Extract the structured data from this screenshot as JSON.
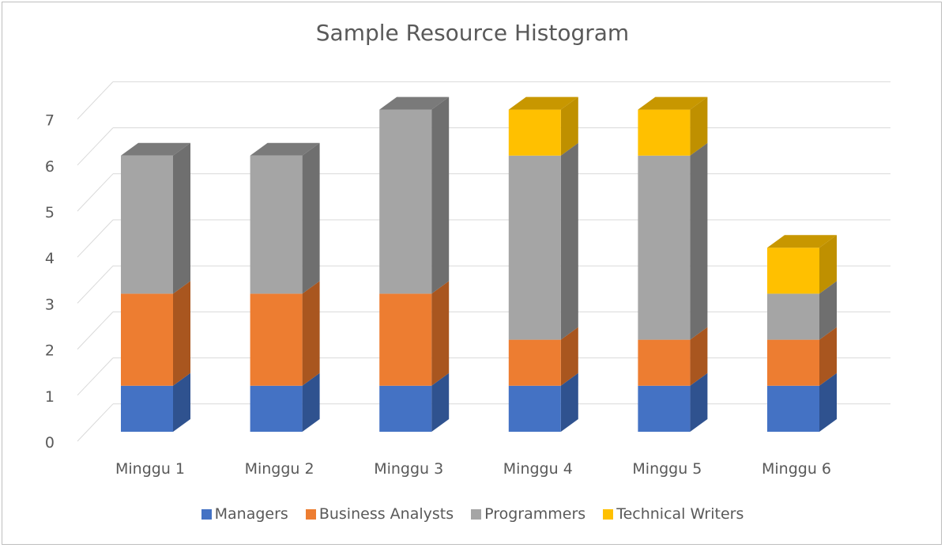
{
  "chart_data": {
    "type": "bar",
    "stacked": true,
    "style": "3d",
    "title": "Sample Resource Histogram",
    "xlabel": "",
    "ylabel": "",
    "ylim": [
      0,
      7
    ],
    "y_ticks": [
      "0",
      "1",
      "2",
      "3",
      "4",
      "5",
      "6",
      "7"
    ],
    "grid": true,
    "legend_position": "bottom",
    "categories": [
      "Minggu 1",
      "Minggu 2",
      "Minggu 3",
      "Minggu 4",
      "Minggu 5",
      "Minggu 6"
    ],
    "series": [
      {
        "name": "Managers",
        "values": [
          1,
          1,
          1,
          1,
          1,
          1
        ],
        "color": "#4472c4",
        "side_color": "#2f528f",
        "top_color": "#3a5ea8"
      },
      {
        "name": "Business Analysts",
        "values": [
          2,
          2,
          2,
          1,
          1,
          1
        ],
        "color": "#ed7d31",
        "side_color": "#a9561f",
        "top_color": "#c86a2a"
      },
      {
        "name": "Programmers",
        "values": [
          3,
          3,
          4,
          4,
          4,
          1
        ],
        "color": "#a5a5a5",
        "side_color": "#6f6f6f",
        "top_color": "#7a7a7a"
      },
      {
        "name": "Technical Writers",
        "values": [
          0,
          0,
          0,
          1,
          1,
          1
        ],
        "color": "#ffc000",
        "side_color": "#bf9000",
        "top_color": "#c89700"
      }
    ]
  }
}
